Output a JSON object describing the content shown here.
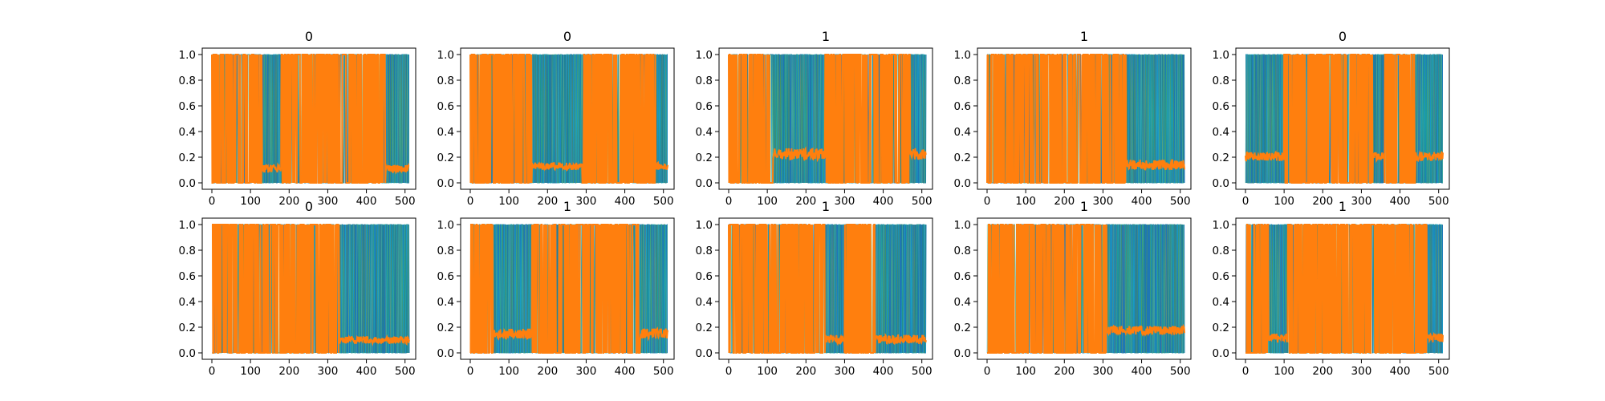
{
  "figure": {
    "layout": "2 rows x 5 columns grid of line plots",
    "colors": {
      "background": "#ffffff",
      "axes": "#000000",
      "series_primary": "#1f77b4",
      "series_highlight": "#ff7f0e",
      "series_secondary": [
        "#17becf",
        "#bcbd22",
        "#2ca02c"
      ]
    }
  },
  "chart_data": [
    {
      "type": "line",
      "title": "0",
      "x": [
        0,
        100,
        200,
        300,
        400,
        500
      ],
      "xlim": [
        0,
        511
      ],
      "ylim": [
        0,
        1
      ],
      "xticks": [
        "0",
        "100",
        "200",
        "300",
        "400",
        "500"
      ],
      "yticks": [
        "0.0",
        "0.2",
        "0.4",
        "0.6",
        "0.8",
        "1.0"
      ],
      "segments": [
        {
          "start": 0,
          "end": 130,
          "highlight": true
        },
        {
          "start": 130,
          "end": 180,
          "highlight": false
        },
        {
          "start": 180,
          "end": 450,
          "highlight": true
        },
        {
          "start": 450,
          "end": 511,
          "highlight": false
        }
      ],
      "background_level": {
        "value": 0.1,
        "range": [
          0.08,
          0.14
        ]
      }
    },
    {
      "type": "line",
      "title": "0",
      "x": [
        0,
        100,
        200,
        300,
        400,
        500
      ],
      "xlim": [
        0,
        511
      ],
      "ylim": [
        0,
        1
      ],
      "xticks": [
        "0",
        "100",
        "200",
        "300",
        "400",
        "500"
      ],
      "yticks": [
        "0.0",
        "0.2",
        "0.4",
        "0.6",
        "0.8",
        "1.0"
      ],
      "segments": [
        {
          "start": 0,
          "end": 160,
          "highlight": true
        },
        {
          "start": 160,
          "end": 290,
          "highlight": false
        },
        {
          "start": 290,
          "end": 480,
          "highlight": true
        },
        {
          "start": 480,
          "end": 511,
          "highlight": false
        }
      ],
      "background_level": {
        "value": 0.13,
        "range": [
          0.1,
          0.16
        ]
      }
    },
    {
      "type": "line",
      "title": "1",
      "x": [
        0,
        100,
        200,
        300,
        400,
        500
      ],
      "xlim": [
        0,
        511
      ],
      "ylim": [
        0,
        1
      ],
      "xticks": [
        "0",
        "100",
        "200",
        "300",
        "400",
        "500"
      ],
      "yticks": [
        "0.0",
        "0.2",
        "0.4",
        "0.6",
        "0.8",
        "1.0"
      ],
      "segments": [
        {
          "start": 0,
          "end": 115,
          "highlight": true
        },
        {
          "start": 115,
          "end": 250,
          "highlight": false
        },
        {
          "start": 250,
          "end": 470,
          "highlight": true
        },
        {
          "start": 470,
          "end": 511,
          "highlight": false
        }
      ],
      "background_level": {
        "value": 0.23,
        "range": [
          0.18,
          0.27
        ]
      }
    },
    {
      "type": "line",
      "title": "1",
      "x": [
        0,
        100,
        200,
        300,
        400,
        500
      ],
      "xlim": [
        0,
        511
      ],
      "ylim": [
        0,
        1
      ],
      "xticks": [
        "0",
        "100",
        "200",
        "300",
        "400",
        "500"
      ],
      "yticks": [
        "0.0",
        "0.2",
        "0.4",
        "0.6",
        "0.8",
        "1.0"
      ],
      "segments": [
        {
          "start": 0,
          "end": 360,
          "highlight": true
        },
        {
          "start": 360,
          "end": 511,
          "highlight": false
        }
      ],
      "background_level": {
        "value": 0.14,
        "range": [
          0.1,
          0.18
        ]
      }
    },
    {
      "type": "line",
      "title": "0",
      "x": [
        0,
        100,
        200,
        300,
        400,
        500
      ],
      "xlim": [
        0,
        511
      ],
      "ylim": [
        0,
        1
      ],
      "xticks": [
        "0",
        "100",
        "200",
        "300",
        "400",
        "500"
      ],
      "yticks": [
        "0.0",
        "0.2",
        "0.4",
        "0.6",
        "0.8",
        "1.0"
      ],
      "segments": [
        {
          "start": 0,
          "end": 100,
          "highlight": false
        },
        {
          "start": 100,
          "end": 330,
          "highlight": true
        },
        {
          "start": 330,
          "end": 360,
          "highlight": false
        },
        {
          "start": 360,
          "end": 440,
          "highlight": true
        },
        {
          "start": 440,
          "end": 511,
          "highlight": false
        }
      ],
      "background_level": {
        "value": 0.2,
        "range": [
          0.17,
          0.24
        ]
      }
    },
    {
      "type": "line",
      "title": "0",
      "x": [
        0,
        100,
        200,
        300,
        400,
        500
      ],
      "xlim": [
        0,
        511
      ],
      "ylim": [
        0,
        1
      ],
      "xticks": [
        "0",
        "100",
        "200",
        "300",
        "400",
        "500"
      ],
      "yticks": [
        "0.0",
        "0.2",
        "0.4",
        "0.6",
        "0.8",
        "1.0"
      ],
      "segments": [
        {
          "start": 0,
          "end": 330,
          "highlight": true
        },
        {
          "start": 330,
          "end": 511,
          "highlight": false
        }
      ],
      "background_level": {
        "value": 0.1,
        "range": [
          0.07,
          0.13
        ]
      }
    },
    {
      "type": "line",
      "title": "1",
      "x": [
        0,
        100,
        200,
        300,
        400,
        500
      ],
      "xlim": [
        0,
        511
      ],
      "ylim": [
        0,
        1
      ],
      "xticks": [
        "0",
        "100",
        "200",
        "300",
        "400",
        "500"
      ],
      "yticks": [
        "0.0",
        "0.2",
        "0.4",
        "0.6",
        "0.8",
        "1.0"
      ],
      "segments": [
        {
          "start": 0,
          "end": 60,
          "highlight": true
        },
        {
          "start": 60,
          "end": 160,
          "highlight": false
        },
        {
          "start": 160,
          "end": 440,
          "highlight": true
        },
        {
          "start": 440,
          "end": 511,
          "highlight": false
        }
      ],
      "background_level": {
        "value": 0.15,
        "range": [
          0.11,
          0.19
        ]
      }
    },
    {
      "type": "line",
      "title": "1",
      "x": [
        0,
        100,
        200,
        300,
        400,
        500
      ],
      "xlim": [
        0,
        511
      ],
      "ylim": [
        0,
        1
      ],
      "xticks": [
        "0",
        "100",
        "200",
        "300",
        "400",
        "500"
      ],
      "yticks": [
        "0.0",
        "0.2",
        "0.4",
        "0.6",
        "0.8",
        "1.0"
      ],
      "segments": [
        {
          "start": 0,
          "end": 250,
          "highlight": true
        },
        {
          "start": 250,
          "end": 300,
          "highlight": false
        },
        {
          "start": 300,
          "end": 380,
          "highlight": true
        },
        {
          "start": 380,
          "end": 511,
          "highlight": false
        }
      ],
      "background_level": {
        "value": 0.1,
        "range": [
          0.07,
          0.14
        ]
      }
    },
    {
      "type": "line",
      "title": "1",
      "x": [
        0,
        100,
        200,
        300,
        400,
        500
      ],
      "xlim": [
        0,
        511
      ],
      "ylim": [
        0,
        1
      ],
      "xticks": [
        "0",
        "100",
        "200",
        "300",
        "400",
        "500"
      ],
      "yticks": [
        "0.0",
        "0.2",
        "0.4",
        "0.6",
        "0.8",
        "1.0"
      ],
      "segments": [
        {
          "start": 0,
          "end": 310,
          "highlight": true
        },
        {
          "start": 310,
          "end": 511,
          "highlight": false
        }
      ],
      "background_level": {
        "value": 0.17,
        "range": [
          0.14,
          0.21
        ]
      }
    },
    {
      "type": "line",
      "title": "1",
      "x": [
        0,
        100,
        200,
        300,
        400,
        500
      ],
      "xlim": [
        0,
        511
      ],
      "ylim": [
        0,
        1
      ],
      "xticks": [
        "0",
        "100",
        "200",
        "300",
        "400",
        "500"
      ],
      "yticks": [
        "0.0",
        "0.2",
        "0.4",
        "0.6",
        "0.8",
        "1.0"
      ],
      "segments": [
        {
          "start": 0,
          "end": 60,
          "highlight": true
        },
        {
          "start": 60,
          "end": 110,
          "highlight": false
        },
        {
          "start": 110,
          "end": 470,
          "highlight": true
        },
        {
          "start": 470,
          "end": 511,
          "highlight": false
        }
      ],
      "background_level": {
        "value": 0.11,
        "range": [
          0.08,
          0.15
        ]
      }
    }
  ]
}
